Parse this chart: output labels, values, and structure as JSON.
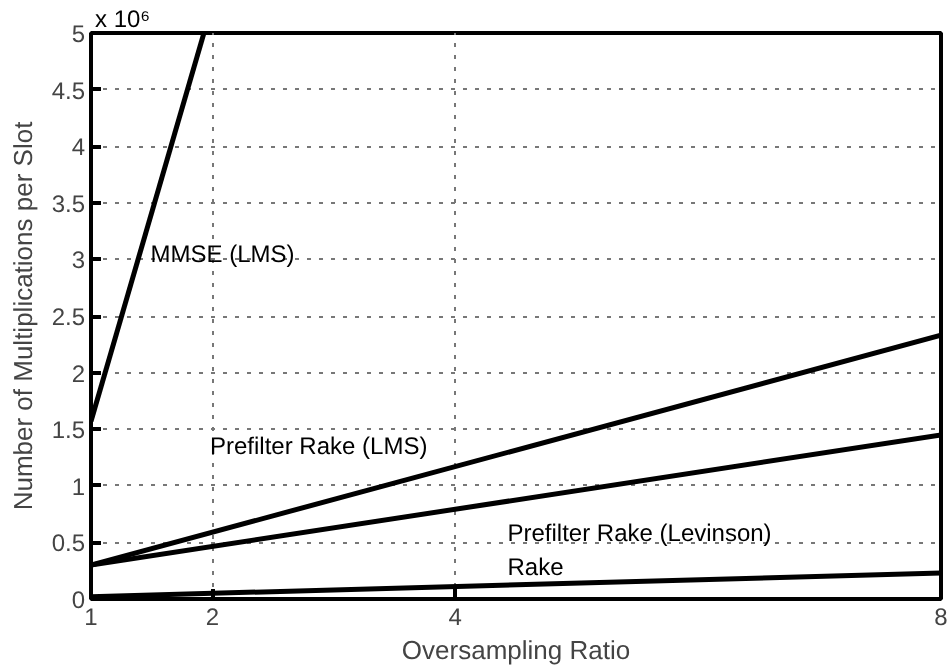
{
  "chart_data": {
    "type": "line",
    "xlabel": "Oversampling Ratio",
    "ylabel": "Number of Multiplications per Slot",
    "xlim": [
      1,
      8
    ],
    "xticks": [
      1,
      2,
      4,
      8
    ],
    "ylim": [
      0,
      5
    ],
    "yticks": [
      0,
      0.5,
      1,
      1.5,
      2,
      2.5,
      3,
      3.5,
      4,
      4.5,
      5
    ],
    "grid": true,
    "marker": "none",
    "line_style": "solid",
    "series": [
      {
        "name": "MMSE (LMS)",
        "color": "#000000",
        "x": [
          1,
          1.93
        ],
        "values": [
          1.57,
          5
        ]
      },
      {
        "name": "Prefilter Rake (LMS)",
        "color": "#000000",
        "x": [
          1,
          8
        ],
        "values": [
          0.3,
          2.33
        ]
      },
      {
        "name": "Prefilter Rake (Levinson)",
        "color": "#000000",
        "x": [
          1,
          8
        ],
        "values": [
          0.3,
          1.45
        ]
      },
      {
        "name": "Rake",
        "color": "#000000",
        "x": [
          1,
          8
        ],
        "values": [
          0.02,
          0.23
        ]
      }
    ],
    "annotations": [
      "x 10⁶"
    ]
  }
}
